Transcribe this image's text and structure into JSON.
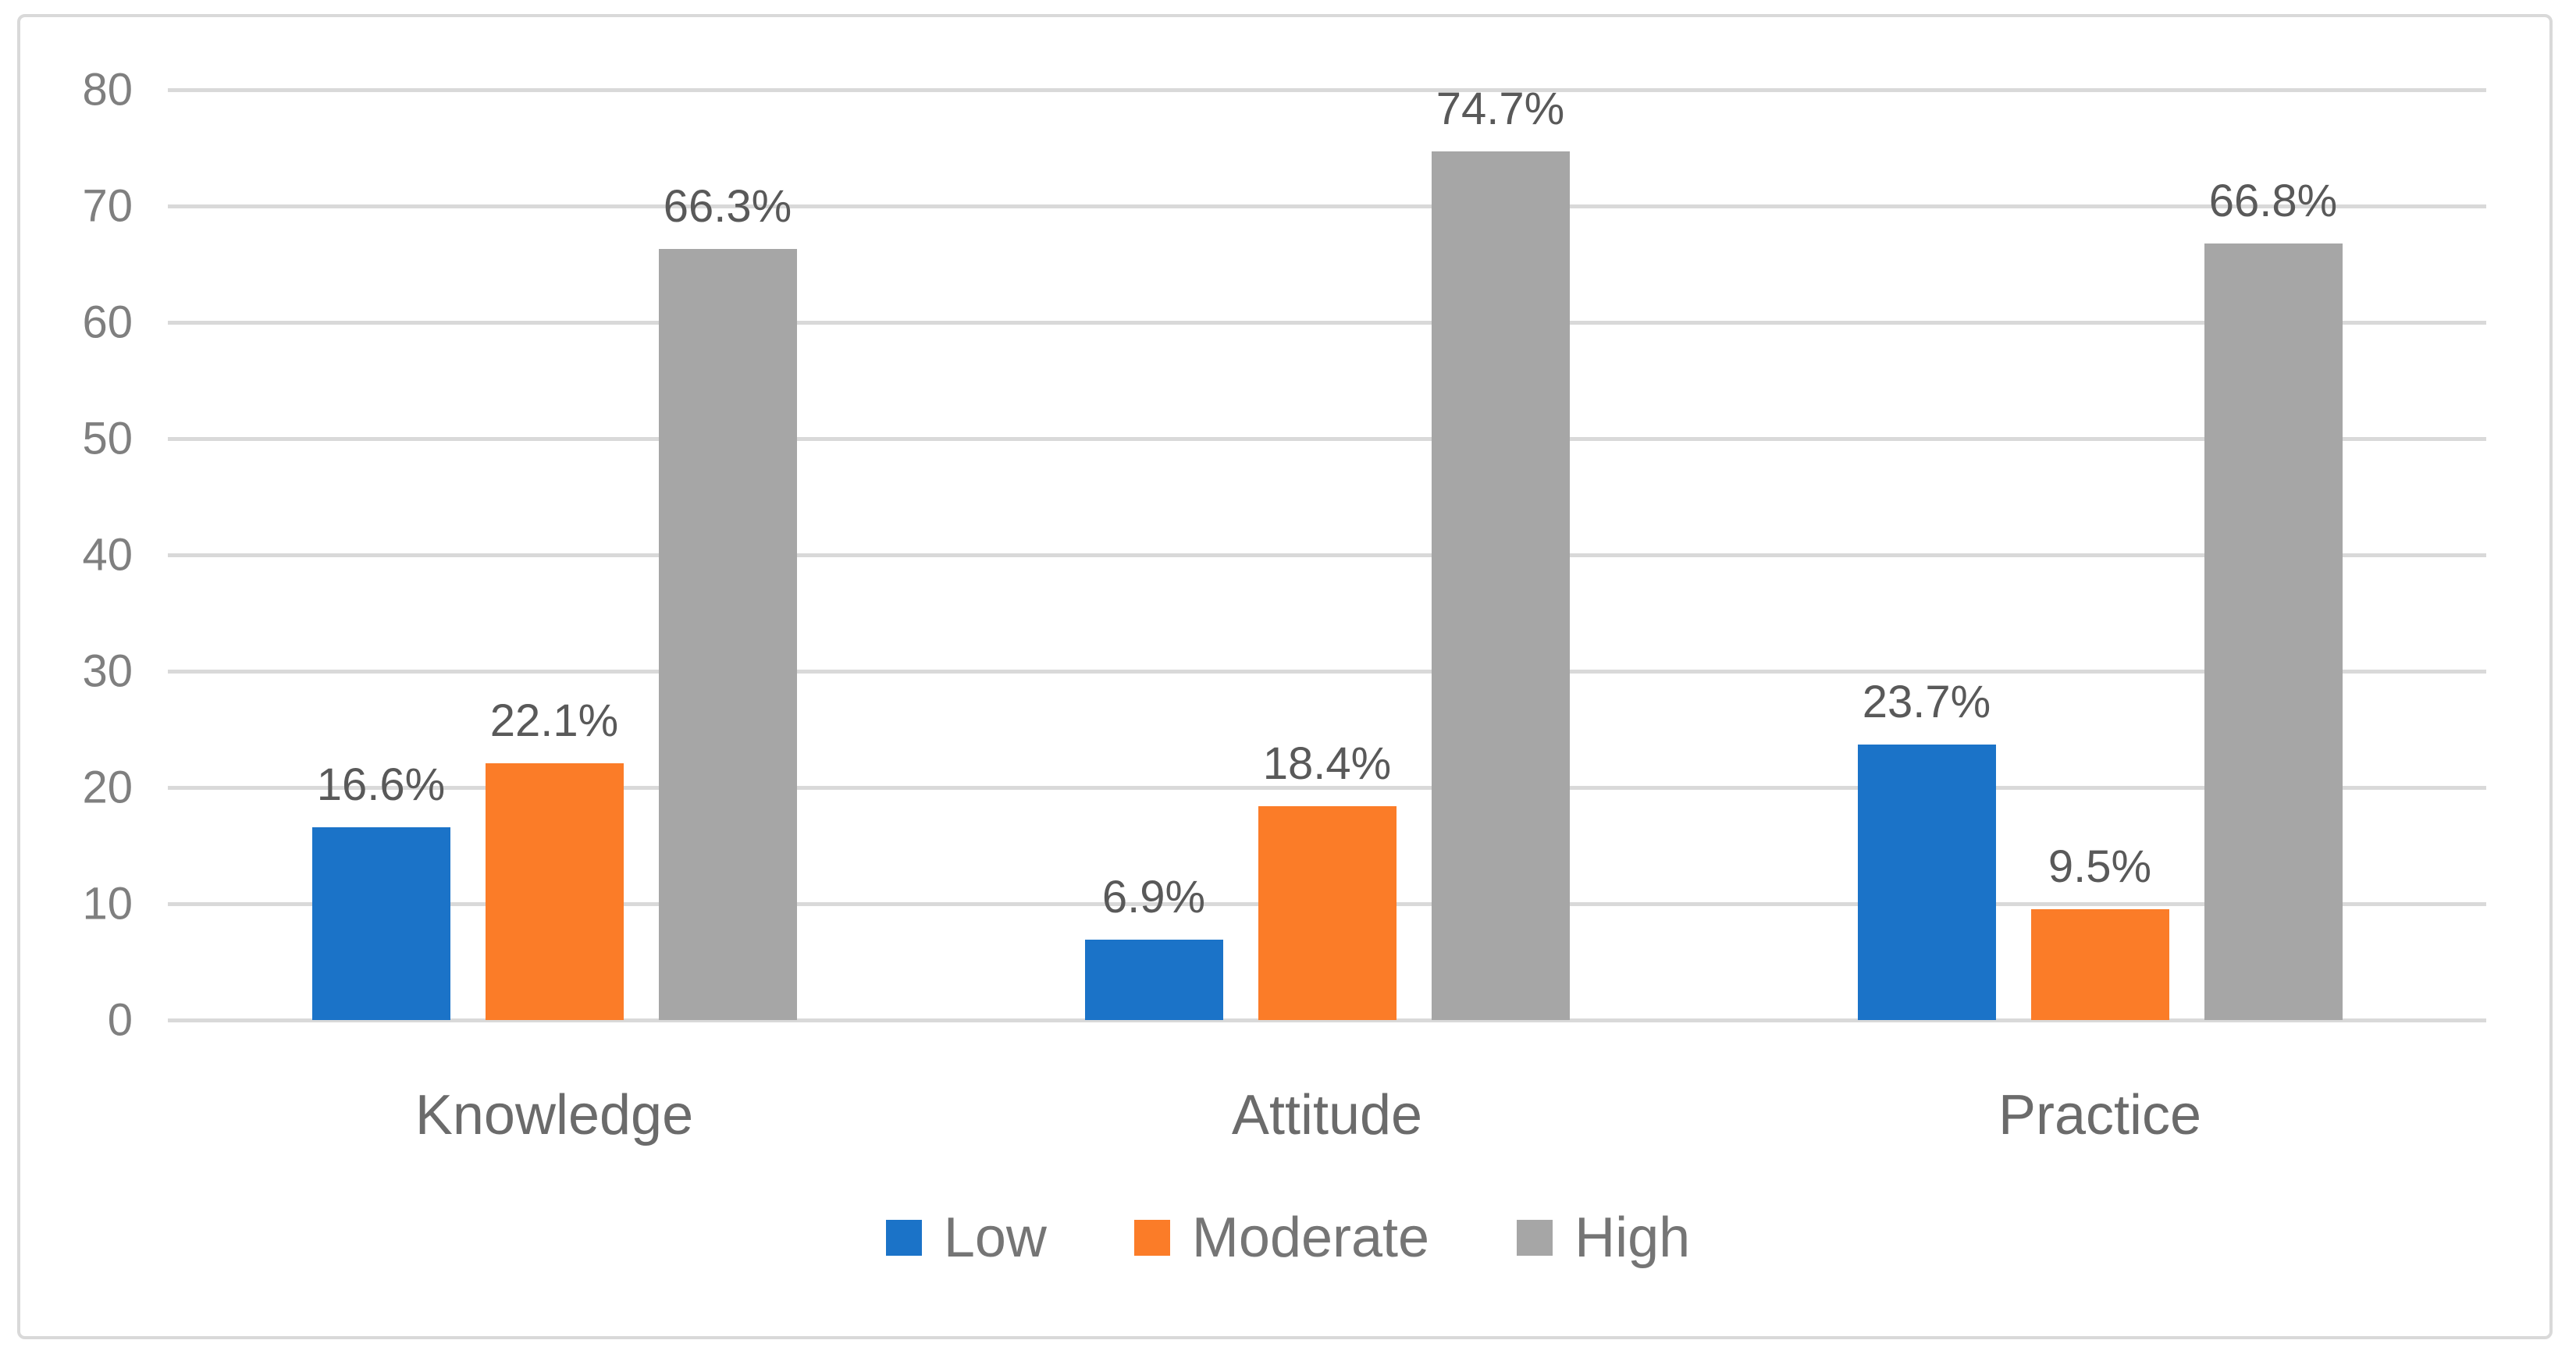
{
  "chart_data": {
    "type": "bar",
    "categories": [
      "Knowledge",
      "Attitude",
      "Practice"
    ],
    "series": [
      {
        "name": "Low",
        "color": "#1b73c8",
        "values": [
          16.6,
          6.9,
          23.7
        ]
      },
      {
        "name": "Moderate",
        "color": "#fb7c28",
        "values": [
          22.1,
          18.4,
          9.5
        ]
      },
      {
        "name": "High",
        "color": "#a6a6a6",
        "values": [
          66.3,
          74.7,
          66.8
        ]
      }
    ],
    "data_labels": [
      [
        "16.6%",
        "6.9%",
        "23.7%"
      ],
      [
        "22.1%",
        "18.4%",
        "9.5%"
      ],
      [
        "66.3%",
        "74.7%",
        "66.8%"
      ]
    ],
    "title": "",
    "xlabel": "",
    "ylabel": "",
    "ylim": [
      0,
      80
    ],
    "ytick_step": 10,
    "ytick_labels": [
      "0",
      "10",
      "20",
      "30",
      "40",
      "50",
      "60",
      "70",
      "80"
    ],
    "grid": true,
    "legend_position": "bottom",
    "legend_labels": [
      "Low",
      "Moderate",
      "High"
    ]
  },
  "colors": {
    "gridline": "#d9d9d9",
    "border": "#d9d9d9",
    "tick_text": "#7f7f7f",
    "data_label_text": "#595959",
    "category_text": "#6b6b6b",
    "legend_text": "#757575"
  }
}
